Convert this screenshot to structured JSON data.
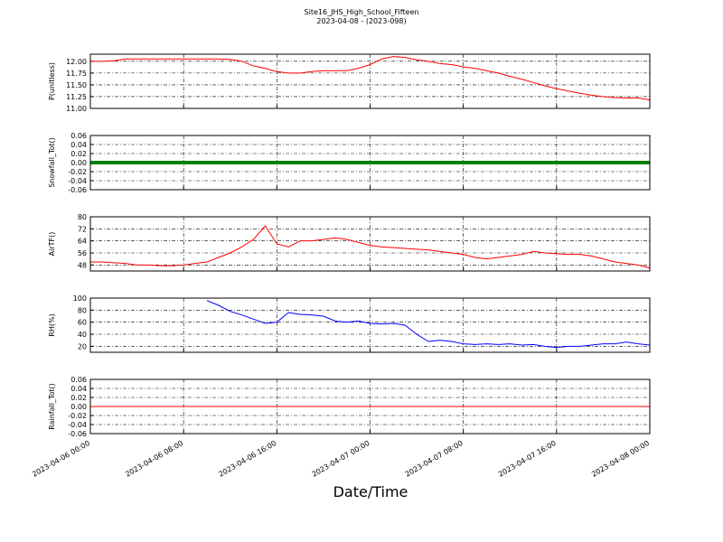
{
  "title": "Site16_JHS_High_School_Fifteen",
  "subtitle": "2023-04-08 - (2023-098)",
  "xlabel": "Date/Time",
  "xlim": [
    "2023-04-06 00:00",
    "2023-04-08 00:00"
  ],
  "xticks": [
    "2023-04-06 00:00",
    "2023-04-06 08:00",
    "2023-04-06 16:00",
    "2023-04-07 00:00",
    "2023-04-07 08:00",
    "2023-04-07 16:00",
    "2023-04-08 00:00"
  ],
  "x": [
    "2023-04-06 00:00",
    "2023-04-06 01:00",
    "2023-04-06 02:00",
    "2023-04-06 03:00",
    "2023-04-06 04:00",
    "2023-04-06 05:00",
    "2023-04-06 06:00",
    "2023-04-06 07:00",
    "2023-04-06 08:00",
    "2023-04-06 09:00",
    "2023-04-06 10:00",
    "2023-04-06 11:00",
    "2023-04-06 12:00",
    "2023-04-06 13:00",
    "2023-04-06 14:00",
    "2023-04-06 15:00",
    "2023-04-06 16:00",
    "2023-04-06 17:00",
    "2023-04-06 18:00",
    "2023-04-06 19:00",
    "2023-04-06 20:00",
    "2023-04-06 21:00",
    "2023-04-06 22:00",
    "2023-04-06 23:00",
    "2023-04-07 00:00",
    "2023-04-07 01:00",
    "2023-04-07 02:00",
    "2023-04-07 03:00",
    "2023-04-07 04:00",
    "2023-04-07 05:00",
    "2023-04-07 06:00",
    "2023-04-07 07:00",
    "2023-04-07 08:00",
    "2023-04-07 09:00",
    "2023-04-07 10:00",
    "2023-04-07 11:00",
    "2023-04-07 12:00",
    "2023-04-07 13:00",
    "2023-04-07 14:00",
    "2023-04-07 15:00",
    "2023-04-07 16:00",
    "2023-04-07 17:00",
    "2023-04-07 18:00",
    "2023-04-07 19:00",
    "2023-04-07 20:00",
    "2023-04-07 21:00",
    "2023-04-07 22:00",
    "2023-04-07 23:00",
    "2023-04-08 00:00"
  ],
  "grid": true,
  "chart_data": [
    {
      "type": "line",
      "ylabel": "P(unitless)",
      "ylim": [
        11.0,
        12.15
      ],
      "yticks": [
        {
          "value": 11,
          "label": "11.00"
        },
        {
          "value": 11.25,
          "label": "11.25"
        },
        {
          "value": 11.5,
          "label": "11.50"
        },
        {
          "value": 11.75,
          "label": "11.75"
        },
        {
          "value": 12,
          "label": "12.00"
        }
      ],
      "series": [
        {
          "color": "#ff0000",
          "width": 1,
          "values": [
            12.0,
            12.0,
            12.01,
            12.05,
            12.05,
            12.05,
            12.05,
            12.05,
            12.05,
            12.05,
            12.05,
            12.05,
            12.04,
            12.0,
            11.9,
            11.85,
            11.78,
            11.75,
            11.75,
            11.78,
            11.8,
            11.8,
            11.8,
            11.85,
            11.93,
            12.05,
            12.1,
            12.08,
            12.03,
            12.0,
            11.95,
            11.93,
            11.88,
            11.85,
            11.8,
            11.75,
            11.68,
            11.62,
            11.55,
            11.48,
            11.42,
            11.37,
            11.32,
            11.28,
            11.25,
            11.23,
            11.22,
            11.22,
            11.18
          ]
        }
      ]
    },
    {
      "type": "line",
      "ylabel": "Snowfall_Tot()",
      "ylim": [
        -0.06,
        0.06
      ],
      "yticks": [
        -0.06,
        -0.04,
        -0.02,
        {
          "value": 0,
          "label": "0.00"
        },
        0.02,
        0.04,
        0.06
      ],
      "series": [
        {
          "color": "#008000",
          "width": 4,
          "values": [
            0,
            0,
            0,
            0,
            0,
            0,
            0,
            0,
            0,
            0,
            0,
            0,
            0,
            0,
            0,
            0,
            0,
            0,
            0,
            0,
            0,
            0,
            0,
            0,
            0,
            0,
            0,
            0,
            0,
            0,
            0,
            0,
            0,
            0,
            0,
            0,
            0,
            0,
            0,
            0,
            0,
            0,
            0,
            0,
            0,
            0,
            0,
            0,
            0
          ]
        }
      ]
    },
    {
      "type": "line",
      "ylabel": "AirTF()",
      "ylim": [
        44,
        80
      ],
      "yticks": [
        48,
        56,
        64,
        72,
        80
      ],
      "series": [
        {
          "color": "#ff0000",
          "width": 1,
          "values": [
            50,
            50,
            49.5,
            49,
            48,
            48,
            47.5,
            47.5,
            48,
            49,
            50,
            53,
            56,
            60,
            65,
            74,
            62,
            60,
            64,
            64,
            65,
            66,
            65,
            63,
            61,
            60,
            59.5,
            59,
            58.5,
            58,
            57,
            56,
            55,
            53,
            52,
            53,
            54,
            55,
            57,
            56,
            55.5,
            55,
            55,
            54,
            52,
            50,
            49,
            48,
            46
          ]
        }
      ]
    },
    {
      "type": "line",
      "ylabel": "RH(%)",
      "ylim": [
        10,
        100
      ],
      "yticks": [
        20,
        40,
        60,
        80,
        100
      ],
      "series": [
        {
          "color": "#0000ff",
          "width": 1,
          "values": [
            null,
            null,
            null,
            null,
            null,
            null,
            null,
            null,
            null,
            null,
            96,
            88,
            78,
            72,
            65,
            58,
            60,
            76,
            73,
            72,
            70,
            62,
            60,
            62,
            58,
            57,
            58,
            55,
            40,
            28,
            30,
            28,
            24,
            23,
            24,
            23,
            24,
            22,
            23,
            20,
            18,
            20,
            20,
            22,
            24,
            24,
            27,
            24,
            22
          ]
        }
      ]
    },
    {
      "type": "line",
      "ylabel": "Rainfall_Tot()",
      "ylim": [
        -0.06,
        0.06
      ],
      "yticks": [
        -0.06,
        -0.04,
        -0.02,
        {
          "value": 0,
          "label": "0.00"
        },
        0.02,
        0.04,
        0.06
      ],
      "series": [
        {
          "color": "#ff0000",
          "width": 1,
          "values": [
            0,
            0,
            0,
            0,
            0,
            0,
            0,
            0,
            0,
            0,
            0,
            0,
            0,
            0,
            0,
            0,
            0,
            0,
            0,
            0,
            0,
            0,
            0,
            0,
            0,
            0,
            0,
            0,
            0,
            0,
            0,
            0,
            0,
            0,
            0,
            0,
            0,
            0,
            0,
            0,
            0,
            0,
            0,
            0,
            0,
            0,
            0,
            0,
            0
          ]
        }
      ]
    }
  ]
}
